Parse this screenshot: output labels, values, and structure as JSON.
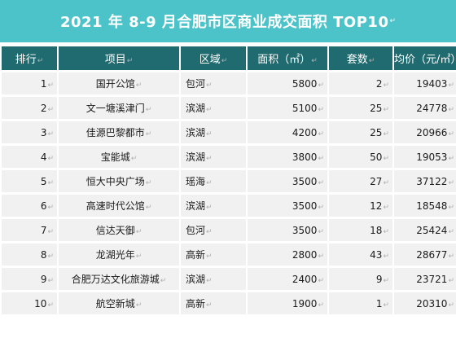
{
  "title": "2021 年 8-9 月合肥市区商业成交面积 TOP10",
  "colors": {
    "title_bg": "#4cc3c9",
    "header_bg": "#1f6b70",
    "cell_bg": "#f1f1f1"
  },
  "table": {
    "headers": [
      "排行",
      "项目",
      "区域",
      "面积（㎡）",
      "套数",
      "均价（元/㎡）"
    ],
    "rows": [
      {
        "rank": "1",
        "project": "国开公馆",
        "region": "包河",
        "area": "5800",
        "units": "2",
        "price": "19403"
      },
      {
        "rank": "2",
        "project": "文一塘溪津门",
        "region": "滨湖",
        "area": "5100",
        "units": "25",
        "price": "24778"
      },
      {
        "rank": "3",
        "project": "佳源巴黎都市",
        "region": "滨湖",
        "area": "4200",
        "units": "25",
        "price": "20966"
      },
      {
        "rank": "4",
        "project": "宝能城",
        "region": "滨湖",
        "area": "3800",
        "units": "50",
        "price": "19053"
      },
      {
        "rank": "5",
        "project": "恒大中央广场",
        "region": "瑶海",
        "area": "3500",
        "units": "27",
        "price": "37122"
      },
      {
        "rank": "6",
        "project": "高速时代公馆",
        "region": "滨湖",
        "area": "3500",
        "units": "12",
        "price": "18548"
      },
      {
        "rank": "7",
        "project": "信达天御",
        "region": "包河",
        "area": "3500",
        "units": "18",
        "price": "25424"
      },
      {
        "rank": "8",
        "project": "龙湖光年",
        "region": "高新",
        "area": "2800",
        "units": "43",
        "price": "28677"
      },
      {
        "rank": "9",
        "project": "合肥万达文化旅游城",
        "region": "滨湖",
        "area": "2400",
        "units": "9",
        "price": "23721"
      },
      {
        "rank": "10",
        "project": "航空新城",
        "region": "高新",
        "area": "1900",
        "units": "1",
        "price": "20310"
      }
    ]
  }
}
